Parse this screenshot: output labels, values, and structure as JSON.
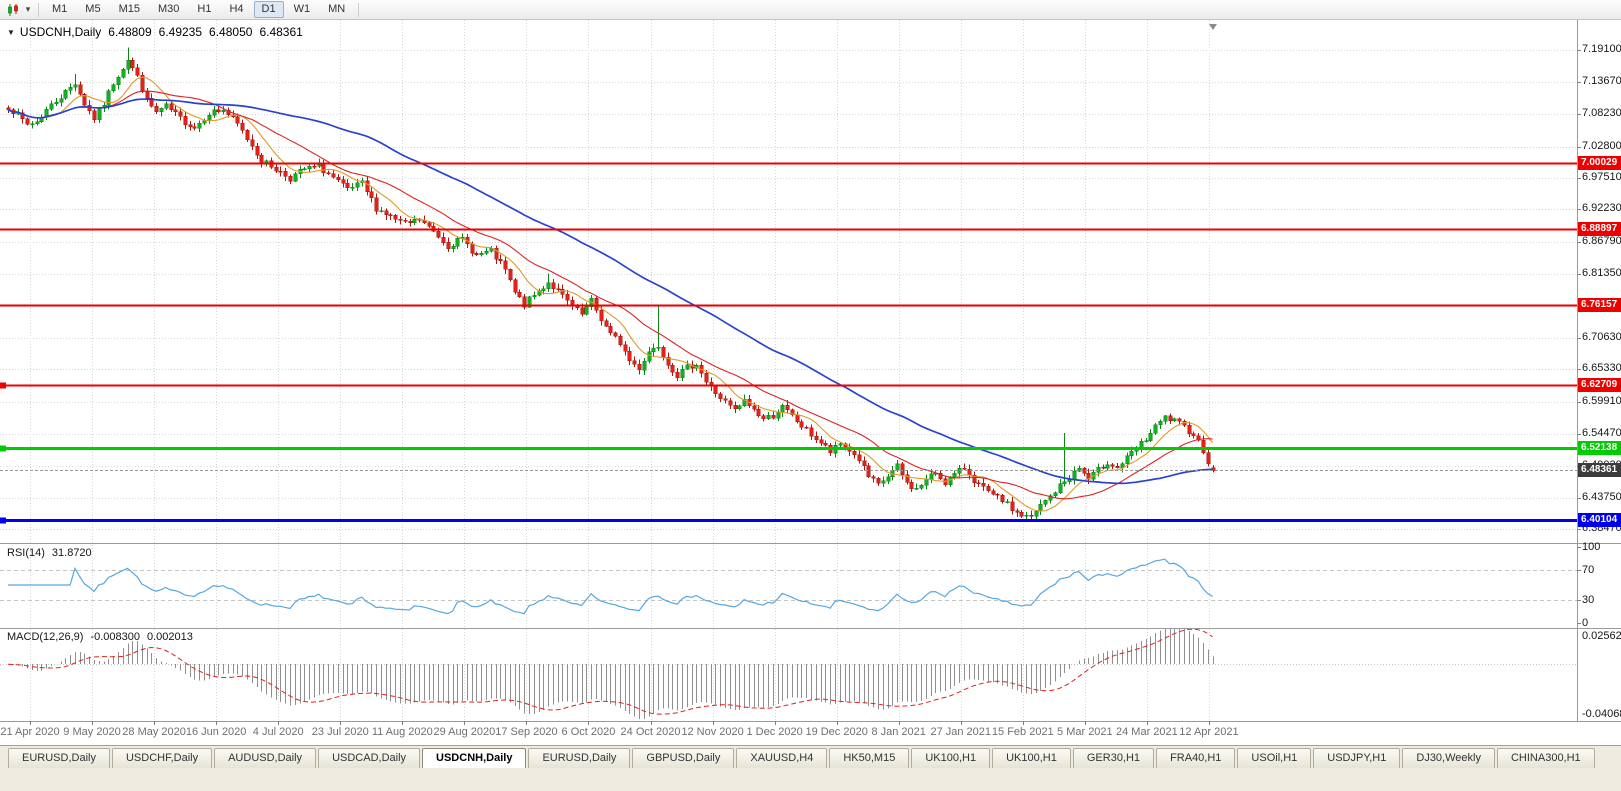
{
  "app": {
    "toolbar": {
      "icons": [
        {
          "name": "candlestick-chart-icon"
        },
        {
          "name": "dropdown-caret-icon",
          "glyph": "▾"
        }
      ],
      "timeframes": [
        {
          "label": "M1"
        },
        {
          "label": "M5"
        },
        {
          "label": "M15"
        },
        {
          "label": "M30"
        },
        {
          "label": "H1"
        },
        {
          "label": "H4"
        },
        {
          "label": "D1",
          "active": true
        },
        {
          "label": "W1"
        },
        {
          "label": "MN"
        }
      ]
    }
  },
  "chart": {
    "title": {
      "menu_glyph": "▼",
      "symbol": "USDCNH,Daily",
      "open": "6.48809",
      "high": "6.49235",
      "low": "6.48050",
      "close": "6.48361"
    },
    "price_axis_labels": [
      "7.19100",
      "7.13670",
      "7.08230",
      "7.02800",
      "6.97510",
      "6.92230",
      "6.86790",
      "6.81350",
      "6.76010",
      "6.70630",
      "6.65330",
      "6.59910",
      "6.54470",
      "6.49030",
      "6.43750",
      "6.38470"
    ],
    "date_axis_labels": [
      "21 Apr 2020",
      "9 May 2020",
      "28 May 2020",
      "16 Jun 2020",
      "4 Jul 2020",
      "23 Jul 2020",
      "11 Aug 2020",
      "29 Aug 2020",
      "17 Sep 2020",
      "6 Oct 2020",
      "24 Oct 2020",
      "12 Nov 2020",
      "1 Dec 2020",
      "19 Dec 2020",
      "8 Jan 2021",
      "27 Jan 2021",
      "15 Feb 2021",
      "5 Mar 2021",
      "24 Mar 2021",
      "12 Apr 2021"
    ],
    "hlines": [
      {
        "price": 7.00029,
        "label": "7.00029",
        "color": "#ee0000",
        "width": 2,
        "handle": false
      },
      {
        "price": 6.88897,
        "label": "6.88897",
        "color": "#ee0000",
        "width": 2,
        "handle": false
      },
      {
        "price": 6.76157,
        "label": "6.76157",
        "color": "#ee0000",
        "width": 2,
        "handle": false
      },
      {
        "price": 6.62709,
        "label": "6.62709",
        "color": "#ee0000",
        "width": 2,
        "handle": true
      },
      {
        "price": 6.52138,
        "label": "6.52138",
        "color": "#00cc00",
        "width": 3,
        "handle": true
      },
      {
        "price": 6.40104,
        "label": "6.40104",
        "color": "#0000ee",
        "width": 3,
        "handle": true
      }
    ],
    "current_price": {
      "value": 6.48361,
      "label": "6.48361",
      "box_color": "#3c3c3c"
    }
  },
  "chart_data": {
    "type": "candlestick",
    "symbol": "USDCNH",
    "timeframe": "Daily",
    "x_range": [
      "21 Apr 2020",
      "12 Apr 2021"
    ],
    "bar_count": 253,
    "price_range_visible": [
      6.3847,
      7.2406
    ],
    "last_bar": {
      "open": 6.48809,
      "high": 6.49235,
      "low": 6.4805,
      "close": 6.48361
    },
    "close_keypoints": [
      [
        0,
        7.095
      ],
      [
        2,
        7.08
      ],
      [
        4,
        7.065
      ],
      [
        6,
        7.07
      ],
      [
        8,
        7.09
      ],
      [
        10,
        7.105
      ],
      [
        12,
        7.12
      ],
      [
        14,
        7.135
      ],
      [
        16,
        7.1
      ],
      [
        18,
        7.075
      ],
      [
        20,
        7.1
      ],
      [
        22,
        7.135
      ],
      [
        25,
        7.175
      ],
      [
        27,
        7.145
      ],
      [
        29,
        7.105
      ],
      [
        31,
        7.085
      ],
      [
        33,
        7.095
      ],
      [
        36,
        7.075
      ],
      [
        39,
        7.06
      ],
      [
        42,
        7.085
      ],
      [
        45,
        7.09
      ],
      [
        48,
        7.065
      ],
      [
        51,
        7.03
      ],
      [
        53,
        7.005
      ],
      [
        56,
        6.99
      ],
      [
        59,
        6.975
      ],
      [
        62,
        6.99
      ],
      [
        65,
        6.995
      ],
      [
        68,
        6.975
      ],
      [
        71,
        6.955
      ],
      [
        74,
        6.965
      ],
      [
        77,
        6.925
      ],
      [
        80,
        6.91
      ],
      [
        83,
        6.897
      ],
      [
        86,
        6.905
      ],
      [
        89,
        6.885
      ],
      [
        92,
        6.862
      ],
      [
        95,
        6.872
      ],
      [
        98,
        6.845
      ],
      [
        101,
        6.852
      ],
      [
        104,
        6.82
      ],
      [
        106,
        6.782
      ],
      [
        108,
        6.762
      ],
      [
        110,
        6.778
      ],
      [
        113,
        6.8
      ],
      [
        115,
        6.785
      ],
      [
        118,
        6.758
      ],
      [
        120,
        6.745
      ],
      [
        122,
        6.768
      ],
      [
        124,
        6.738
      ],
      [
        126,
        6.712
      ],
      [
        128,
        6.698
      ],
      [
        130,
        6.668
      ],
      [
        132,
        6.656
      ],
      [
        134,
        6.684
      ],
      [
        136,
        6.694
      ],
      [
        138,
        6.664
      ],
      [
        140,
        6.644
      ],
      [
        142,
        6.656
      ],
      [
        144,
        6.664
      ],
      [
        146,
        6.632
      ],
      [
        148,
        6.614
      ],
      [
        150,
        6.598
      ],
      [
        152,
        6.584
      ],
      [
        154,
        6.6
      ],
      [
        156,
        6.586
      ],
      [
        158,
        6.57
      ],
      [
        160,
        6.576
      ],
      [
        162,
        6.59
      ],
      [
        164,
        6.574
      ],
      [
        166,
        6.558
      ],
      [
        168,
        6.544
      ],
      [
        170,
        6.53
      ],
      [
        172,
        6.514
      ],
      [
        174,
        6.528
      ],
      [
        176,
        6.518
      ],
      [
        178,
        6.502
      ],
      [
        180,
        6.472
      ],
      [
        182,
        6.458
      ],
      [
        184,
        6.474
      ],
      [
        186,
        6.49
      ],
      [
        188,
        6.462
      ],
      [
        190,
        6.452
      ],
      [
        192,
        6.468
      ],
      [
        194,
        6.48
      ],
      [
        196,
        6.464
      ],
      [
        198,
        6.476
      ],
      [
        200,
        6.488
      ],
      [
        202,
        6.468
      ],
      [
        204,
        6.452
      ],
      [
        206,
        6.44
      ],
      [
        208,
        6.434
      ],
      [
        210,
        6.418
      ],
      [
        212,
        6.408
      ],
      [
        214,
        6.404
      ],
      [
        216,
        6.424
      ],
      [
        218,
        6.44
      ],
      [
        220,
        6.458
      ],
      [
        222,
        6.472
      ],
      [
        224,
        6.488
      ],
      [
        226,
        6.468
      ],
      [
        228,
        6.484
      ],
      [
        230,
        6.498
      ],
      [
        232,
        6.488
      ],
      [
        234,
        6.504
      ],
      [
        236,
        6.52
      ],
      [
        238,
        6.536
      ],
      [
        240,
        6.556
      ],
      [
        242,
        6.572
      ],
      [
        244,
        6.566
      ],
      [
        246,
        6.556
      ],
      [
        248,
        6.546
      ],
      [
        250,
        6.518
      ],
      [
        251,
        6.5
      ],
      [
        252,
        6.48361
      ]
    ],
    "wick_spikes": [
      [
        14,
        0.018
      ],
      [
        25,
        0.022
      ],
      [
        113,
        0.016
      ],
      [
        136,
        0.072
      ],
      [
        221,
        0.082
      ]
    ],
    "overlays": [
      {
        "name": "MA-fast",
        "type": "sma",
        "window": 8,
        "color": "#e09a26"
      },
      {
        "name": "MA-mid",
        "type": "sma",
        "window": 20,
        "color": "#dd2222"
      },
      {
        "name": "MA-slow",
        "type": "sma",
        "window": 55,
        "color": "#2743cf"
      }
    ],
    "colors": {
      "up": "#10b020",
      "up_border": "#0b8418",
      "down": "#e32119",
      "down_border": "#a81810",
      "grid": "#d6d6d6"
    }
  },
  "rsi": {
    "name": "RSI(14)",
    "value": "31.8720",
    "period": 14,
    "axis_labels": [
      "100",
      "70",
      "30",
      "0"
    ],
    "levels": [
      70,
      30
    ],
    "range": [
      0,
      100
    ],
    "line_color": "#55a7e0"
  },
  "macd": {
    "name": "MACD(12,26,9)",
    "value_main": "-0.008300",
    "value_signal": "0.002013",
    "fast": 12,
    "slow": 26,
    "signal_period": 9,
    "axis_top": "0.025623",
    "axis_bottom": "-0.04068",
    "range": [
      -0.04068,
      0.025623
    ],
    "histogram_color": "#8f8f8f",
    "signal_color": "#dd2222"
  },
  "tabs": {
    "items": [
      {
        "label": "EURUSD,Daily"
      },
      {
        "label": "USDCHF,Daily"
      },
      {
        "label": "AUDUSD,Daily"
      },
      {
        "label": "USDCAD,Daily"
      },
      {
        "label": "USDCNH,Daily",
        "active": true
      },
      {
        "label": "EURUSD,Daily"
      },
      {
        "label": "GBPUSD,Daily"
      },
      {
        "label": "XAUUSD,H4"
      },
      {
        "label": "HK50,M15"
      },
      {
        "label": "UK100,H1"
      },
      {
        "label": "UK100,H1"
      },
      {
        "label": "GER30,H1"
      },
      {
        "label": "FRA40,H1"
      },
      {
        "label": "USOil,H1"
      },
      {
        "label": "USDJPY,H1"
      },
      {
        "label": "DJ30,Weekly"
      },
      {
        "label": "CHINA300,H1"
      }
    ]
  }
}
